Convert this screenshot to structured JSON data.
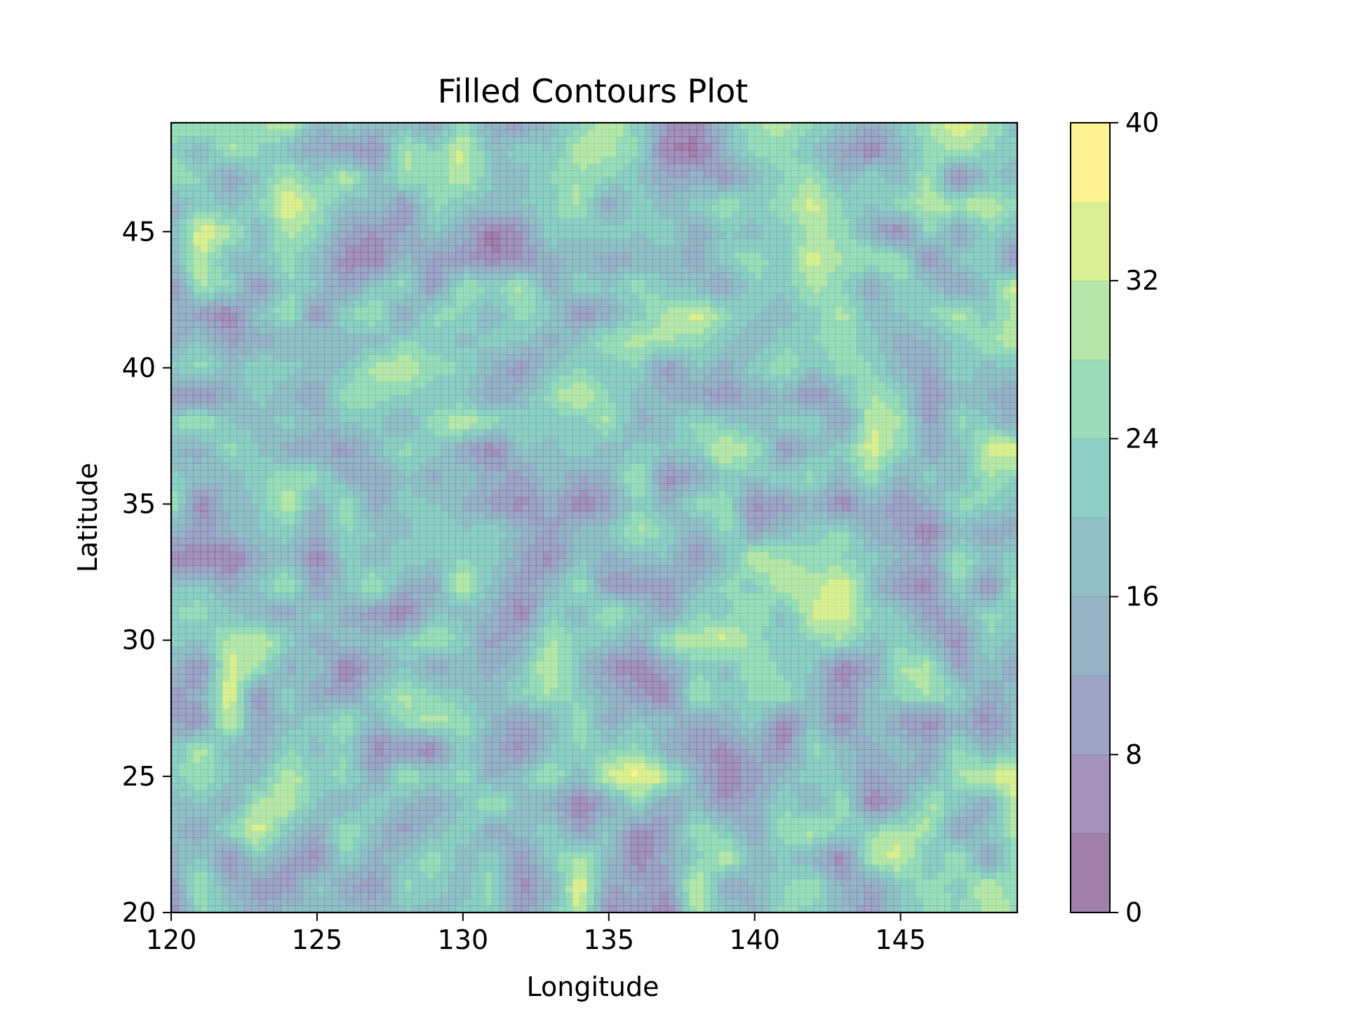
{
  "chart_data": {
    "type": "heatmap",
    "subtype": "filled-contour",
    "title": "Filled Contours Plot",
    "xlabel": "Longitude",
    "ylabel": "Latitude",
    "xlim": [
      120,
      149
    ],
    "ylim": [
      20,
      49
    ],
    "x_ticks": [
      120,
      125,
      130,
      135,
      140,
      145
    ],
    "x_tick_labels": [
      "120",
      "125",
      "130",
      "135",
      "140",
      "145"
    ],
    "y_ticks": [
      20,
      25,
      30,
      35,
      40,
      45
    ],
    "y_tick_labels": [
      "20",
      "25",
      "30",
      "35",
      "40",
      "45"
    ],
    "grid": false,
    "alpha": 0.5,
    "colormap": "viridis",
    "levels": [
      0,
      4,
      8,
      12,
      16,
      20,
      24,
      28,
      32,
      36,
      40
    ],
    "band_colors": [
      "#440154",
      "#482878",
      "#3e4989",
      "#31688e",
      "#26828e",
      "#1f9e89",
      "#35b779",
      "#6ece58",
      "#b5de2b",
      "#fde725"
    ],
    "grid_x": [
      120,
      121,
      122,
      123,
      124,
      125,
      126,
      127,
      128,
      129,
      130,
      131,
      132,
      133,
      134,
      135,
      136,
      137,
      138,
      139,
      140,
      141,
      142,
      143,
      144,
      145,
      146,
      147,
      148,
      149
    ],
    "grid_y": [
      20,
      21,
      22,
      23,
      24,
      25,
      26,
      27,
      28,
      29,
      30,
      31,
      32,
      33,
      34,
      35,
      36,
      37,
      38,
      39,
      40,
      41,
      42,
      43,
      44,
      45,
      46,
      47,
      48,
      49
    ],
    "z_rows_bottom_to_top": [
      [
        5,
        25,
        22,
        12,
        18,
        16,
        19,
        14,
        20,
        17,
        21,
        24,
        10,
        19,
        33,
        5,
        12,
        4,
        30,
        20,
        14,
        26,
        22,
        18,
        8,
        21,
        25,
        24,
        30,
        28
      ],
      [
        8,
        30,
        14,
        10,
        9,
        22,
        12,
        9,
        25,
        22,
        18,
        26,
        6,
        15,
        36,
        12,
        13,
        9,
        35,
        12,
        16,
        24,
        28,
        14,
        12,
        20,
        27,
        22,
        32,
        24
      ],
      [
        14,
        22,
        6,
        22,
        12,
        6,
        24,
        14,
        20,
        28,
        16,
        24,
        8,
        22,
        30,
        18,
        4,
        14,
        22,
        32,
        18,
        20,
        16,
        4,
        30,
        34,
        18,
        30,
        10,
        26
      ],
      [
        18,
        12,
        26,
        34,
        20,
        12,
        30,
        18,
        10,
        18,
        24,
        12,
        18,
        24,
        10,
        22,
        6,
        10,
        28,
        22,
        12,
        28,
        30,
        22,
        26,
        30,
        28,
        10,
        20,
        30
      ],
      [
        16,
        20,
        14,
        30,
        32,
        20,
        14,
        24,
        16,
        12,
        20,
        30,
        18,
        14,
        4,
        12,
        24,
        12,
        18,
        8,
        14,
        24,
        14,
        28,
        4,
        12,
        30,
        20,
        12,
        34
      ],
      [
        22,
        28,
        20,
        18,
        32,
        22,
        26,
        12,
        30,
        22,
        26,
        14,
        20,
        30,
        16,
        34,
        38,
        32,
        16,
        4,
        10,
        18,
        22,
        20,
        10,
        14,
        16,
        28,
        34,
        34
      ],
      [
        20,
        30,
        18,
        14,
        24,
        18,
        24,
        6,
        8,
        4,
        22,
        14,
        6,
        20,
        24,
        22,
        26,
        14,
        10,
        6,
        14,
        6,
        26,
        18,
        14,
        20,
        12,
        26,
        16,
        22
      ],
      [
        12,
        8,
        34,
        12,
        18,
        22,
        28,
        16,
        26,
        30,
        28,
        16,
        10,
        16,
        28,
        14,
        20,
        18,
        12,
        16,
        22,
        4,
        20,
        6,
        20,
        10,
        6,
        14,
        6,
        18
      ],
      [
        10,
        14,
        36,
        6,
        24,
        12,
        10,
        22,
        30,
        24,
        20,
        18,
        24,
        28,
        22,
        16,
        10,
        4,
        30,
        20,
        26,
        28,
        18,
        8,
        18,
        26,
        28,
        24,
        12,
        20
      ],
      [
        18,
        6,
        34,
        28,
        14,
        20,
        4,
        12,
        20,
        12,
        18,
        14,
        20,
        34,
        18,
        8,
        4,
        12,
        22,
        18,
        28,
        22,
        20,
        4,
        12,
        28,
        30,
        10,
        20,
        12
      ],
      [
        22,
        20,
        30,
        32,
        24,
        14,
        18,
        20,
        22,
        30,
        22,
        10,
        14,
        28,
        24,
        20,
        14,
        30,
        30,
        34,
        26,
        20,
        24,
        28,
        18,
        24,
        16,
        6,
        24,
        18
      ],
      [
        24,
        26,
        20,
        16,
        12,
        22,
        14,
        8,
        4,
        20,
        18,
        16,
        4,
        24,
        16,
        30,
        22,
        12,
        24,
        22,
        28,
        18,
        34,
        34,
        24,
        20,
        10,
        14,
        26,
        22
      ],
      [
        20,
        22,
        14,
        20,
        30,
        10,
        20,
        30,
        14,
        12,
        34,
        18,
        10,
        16,
        28,
        8,
        10,
        8,
        18,
        26,
        22,
        32,
        30,
        36,
        18,
        8,
        6,
        26,
        6,
        28
      ],
      [
        4,
        6,
        2,
        14,
        18,
        4,
        22,
        16,
        24,
        20,
        24,
        22,
        12,
        6,
        20,
        14,
        18,
        20,
        8,
        18,
        32,
        28,
        26,
        24,
        22,
        16,
        12,
        28,
        20,
        22
      ],
      [
        16,
        10,
        16,
        20,
        22,
        14,
        24,
        20,
        18,
        24,
        20,
        24,
        16,
        10,
        18,
        20,
        30,
        22,
        14,
        26,
        12,
        18,
        22,
        26,
        14,
        12,
        4,
        18,
        12,
        14
      ],
      [
        30,
        4,
        18,
        20,
        32,
        14,
        30,
        12,
        22,
        20,
        16,
        10,
        6,
        14,
        4,
        10,
        24,
        14,
        26,
        28,
        6,
        10,
        16,
        4,
        16,
        8,
        14,
        26,
        24,
        18
      ],
      [
        22,
        18,
        16,
        24,
        26,
        26,
        14,
        12,
        20,
        14,
        20,
        14,
        10,
        20,
        12,
        16,
        30,
        6,
        12,
        22,
        20,
        24,
        26,
        16,
        28,
        14,
        22,
        16,
        28,
        24
      ],
      [
        16,
        14,
        26,
        20,
        14,
        12,
        10,
        18,
        26,
        22,
        12,
        4,
        20,
        18,
        24,
        16,
        22,
        20,
        22,
        34,
        28,
        8,
        18,
        22,
        34,
        26,
        12,
        18,
        34,
        36
      ],
      [
        24,
        30,
        20,
        18,
        22,
        16,
        20,
        22,
        14,
        26,
        32,
        26,
        24,
        22,
        20,
        30,
        14,
        18,
        26,
        22,
        18,
        22,
        24,
        10,
        32,
        28,
        10,
        26,
        20,
        14
      ],
      [
        10,
        6,
        14,
        22,
        16,
        12,
        28,
        26,
        24,
        20,
        20,
        12,
        16,
        26,
        34,
        24,
        18,
        16,
        12,
        8,
        14,
        16,
        6,
        18,
        28,
        24,
        6,
        18,
        16,
        12
      ],
      [
        20,
        26,
        18,
        24,
        22,
        18,
        20,
        30,
        32,
        26,
        24,
        16,
        8,
        20,
        24,
        20,
        24,
        8,
        20,
        14,
        22,
        28,
        20,
        26,
        24,
        16,
        12,
        24,
        18,
        20
      ],
      [
        14,
        20,
        10,
        14,
        16,
        20,
        18,
        16,
        24,
        22,
        18,
        22,
        20,
        14,
        20,
        28,
        30,
        28,
        26,
        20,
        16,
        22,
        24,
        26,
        22,
        14,
        16,
        22,
        28,
        30
      ],
      [
        16,
        10,
        4,
        20,
        28,
        8,
        24,
        30,
        10,
        26,
        24,
        16,
        26,
        22,
        8,
        14,
        22,
        30,
        34,
        26,
        20,
        18,
        22,
        30,
        18,
        20,
        24,
        30,
        20,
        32
      ],
      [
        6,
        30,
        24,
        8,
        24,
        20,
        10,
        20,
        26,
        8,
        28,
        24,
        30,
        14,
        24,
        20,
        26,
        20,
        18,
        10,
        24,
        20,
        30,
        24,
        12,
        24,
        20,
        10,
        20,
        34
      ],
      [
        16,
        32,
        18,
        20,
        26,
        18,
        6,
        4,
        18,
        10,
        10,
        4,
        8,
        14,
        18,
        12,
        16,
        18,
        14,
        24,
        26,
        22,
        34,
        28,
        30,
        28,
        6,
        22,
        24,
        4
      ],
      [
        14,
        36,
        30,
        16,
        30,
        24,
        12,
        8,
        12,
        20,
        14,
        2,
        8,
        24,
        20,
        24,
        20,
        24,
        12,
        20,
        18,
        22,
        30,
        26,
        14,
        4,
        26,
        10,
        24,
        18
      ],
      [
        14,
        22,
        18,
        24,
        36,
        28,
        18,
        20,
        8,
        26,
        20,
        18,
        20,
        22,
        30,
        10,
        24,
        16,
        22,
        28,
        22,
        26,
        34,
        24,
        20,
        26,
        30,
        30,
        32,
        24
      ],
      [
        28,
        24,
        12,
        20,
        30,
        22,
        32,
        18,
        28,
        24,
        32,
        20,
        18,
        24,
        28,
        24,
        20,
        12,
        14,
        8,
        18,
        24,
        28,
        16,
        24,
        16,
        30,
        4,
        20,
        18
      ],
      [
        24,
        16,
        30,
        24,
        18,
        12,
        10,
        6,
        30,
        24,
        34,
        18,
        22,
        20,
        30,
        30,
        24,
        4,
        2,
        16,
        26,
        26,
        20,
        12,
        4,
        16,
        26,
        30,
        24,
        20
      ],
      [
        26,
        30,
        24,
        28,
        32,
        16,
        22,
        20,
        18,
        10,
        26,
        12,
        10,
        18,
        24,
        32,
        22,
        8,
        6,
        18,
        28,
        30,
        24,
        20,
        12,
        22,
        28,
        36,
        30,
        18
      ]
    ],
    "colorbar": {
      "ticks": [
        0,
        8,
        16,
        24,
        32,
        40
      ],
      "tick_labels": [
        "0",
        "8",
        "16",
        "24",
        "32",
        "40"
      ]
    }
  }
}
